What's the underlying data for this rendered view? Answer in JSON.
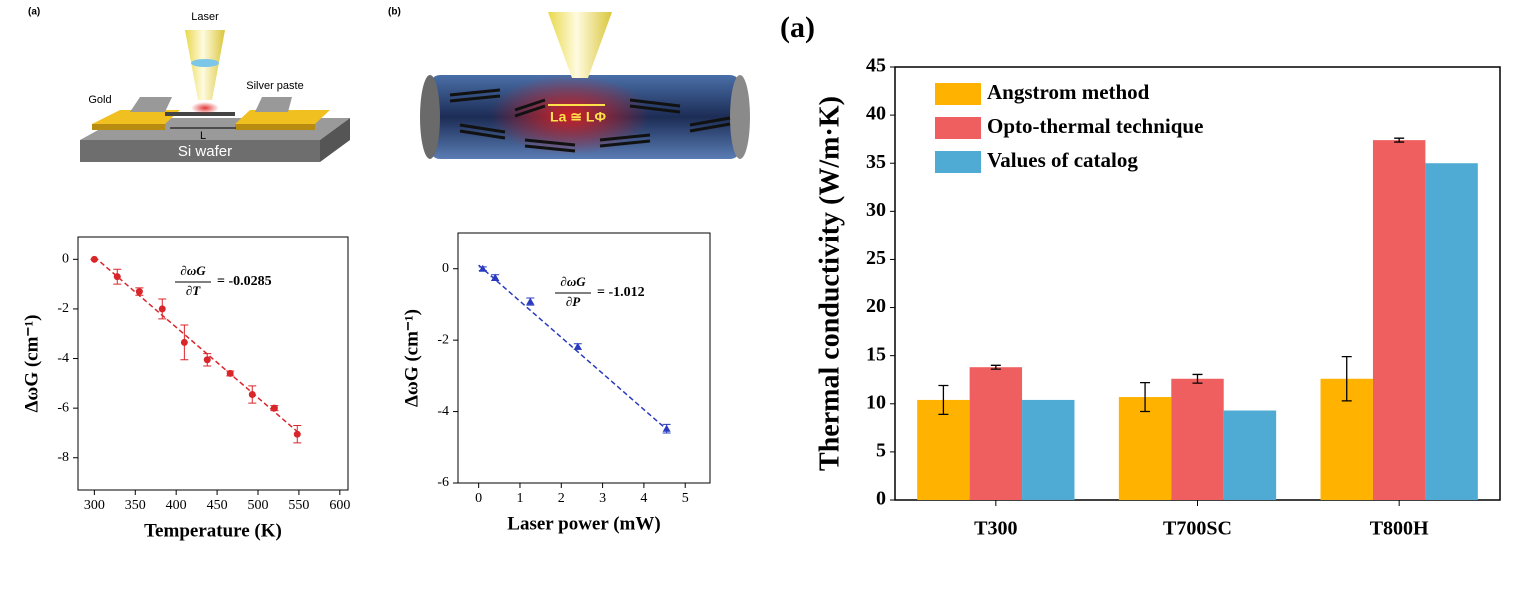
{
  "illustrations": {
    "a": {
      "label": "(a)",
      "laser": "Laser",
      "gold": "Gold",
      "silver": "Silver paste",
      "length": "L",
      "wafer": "Si wafer"
    },
    "b": {
      "label": "(b)",
      "length": "La ≅ LΦ"
    }
  },
  "chart_data": [
    {
      "type": "scatter",
      "xlabel": "Temperature (K)",
      "ylabel": "ΔωG (cm⁻¹)",
      "annotation": {
        "numerator": "∂ωG",
        "denominator": "∂T",
        "value": "= -0.0285"
      },
      "color": "#d9262b",
      "marker": "circle",
      "x": [
        300,
        328,
        355,
        383,
        410,
        438,
        466,
        493,
        520,
        548
      ],
      "values": [
        0,
        -0.7,
        -1.3,
        -2.0,
        -3.35,
        -4.05,
        -4.6,
        -5.45,
        -6.0,
        -7.05
      ],
      "errors": [
        0,
        0.3,
        0.15,
        0.4,
        0.7,
        0.25,
        0.1,
        0.35,
        0.1,
        0.35
      ],
      "fit": {
        "x": [
          300,
          550
        ],
        "y": [
          0.1,
          -7.0
        ]
      },
      "xlim": [
        280,
        610
      ],
      "ylim": [
        -9.3,
        0.9
      ],
      "xticks": [
        300,
        350,
        400,
        450,
        500,
        550,
        600
      ],
      "yticks": [
        0,
        -2,
        -4,
        -6,
        -8
      ]
    },
    {
      "type": "scatter",
      "xlabel": "Laser power (mW)",
      "ylabel": "ΔωG (cm⁻¹)",
      "annotation": {
        "numerator": "∂ωG",
        "denominator": "∂P",
        "value": "= -1.012"
      },
      "color": "#2a3bbf",
      "marker": "triangle",
      "x": [
        0.1,
        0.4,
        1.25,
        2.4,
        4.55
      ],
      "values": [
        0,
        -0.25,
        -0.92,
        -2.18,
        -4.48
      ],
      "errors": [
        0.05,
        0.08,
        0.1,
        0.08,
        0.12
      ],
      "fit": {
        "x": [
          0,
          4.6
        ],
        "y": [
          0.1,
          -4.55
        ]
      },
      "xlim": [
        -0.5,
        5.6
      ],
      "ylim": [
        -6,
        1
      ],
      "xticks": [
        0,
        1,
        2,
        3,
        4,
        5
      ],
      "yticks": [
        0,
        -2,
        -4,
        -6
      ]
    },
    {
      "type": "bar",
      "title": "(a)",
      "ylabel": "Thermal conductivity (W/m·K)",
      "categories": [
        "T300",
        "T700SC",
        "T800H"
      ],
      "series": [
        {
          "name": "Angstrom method",
          "color": "#ffb300",
          "values": [
            10.4,
            10.7,
            12.6
          ],
          "errors": [
            1.5,
            1.5,
            2.3
          ]
        },
        {
          "name": "Opto-thermal technique",
          "color": "#ef5f5f",
          "values": [
            13.8,
            12.6,
            37.4
          ],
          "errors": [
            0.2,
            0.45,
            0.2
          ]
        },
        {
          "name": "Values of catalog",
          "color": "#4fabd4",
          "values": [
            10.4,
            9.3,
            35.0
          ]
        }
      ],
      "ylim": [
        0,
        45
      ],
      "yticks": [
        0,
        5,
        10,
        15,
        20,
        25,
        30,
        35,
        40,
        45
      ],
      "legend": "upper left"
    }
  ]
}
